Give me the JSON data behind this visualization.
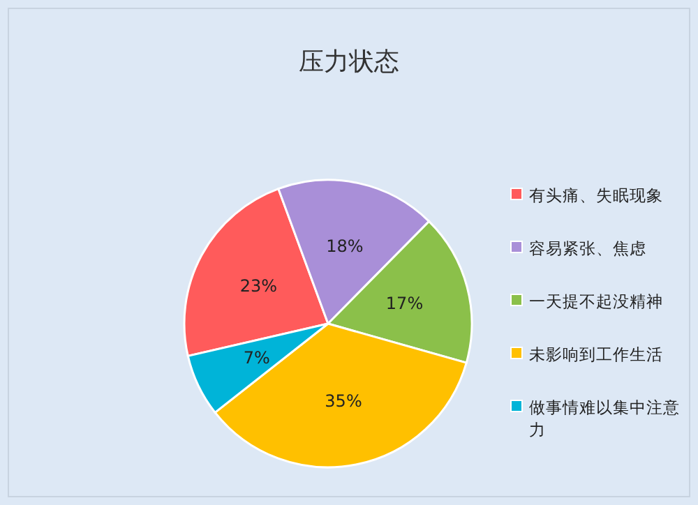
{
  "chart_data": {
    "type": "pie",
    "title": "压力状态",
    "categories": [
      "有头痛、失眠现象",
      "容易紧张、焦虑",
      "一天提不起没精神",
      "未影响到工作生活",
      "做事情难以集中注意力"
    ],
    "values": [
      23,
      18,
      17,
      35,
      7
    ],
    "colors": [
      "#ff5b5b",
      "#a98fd8",
      "#8bc04a",
      "#ffc000",
      "#00b4d8"
    ],
    "value_labels": [
      "23%",
      "18%",
      "17%",
      "35%",
      "7%"
    ],
    "legend": "right"
  }
}
